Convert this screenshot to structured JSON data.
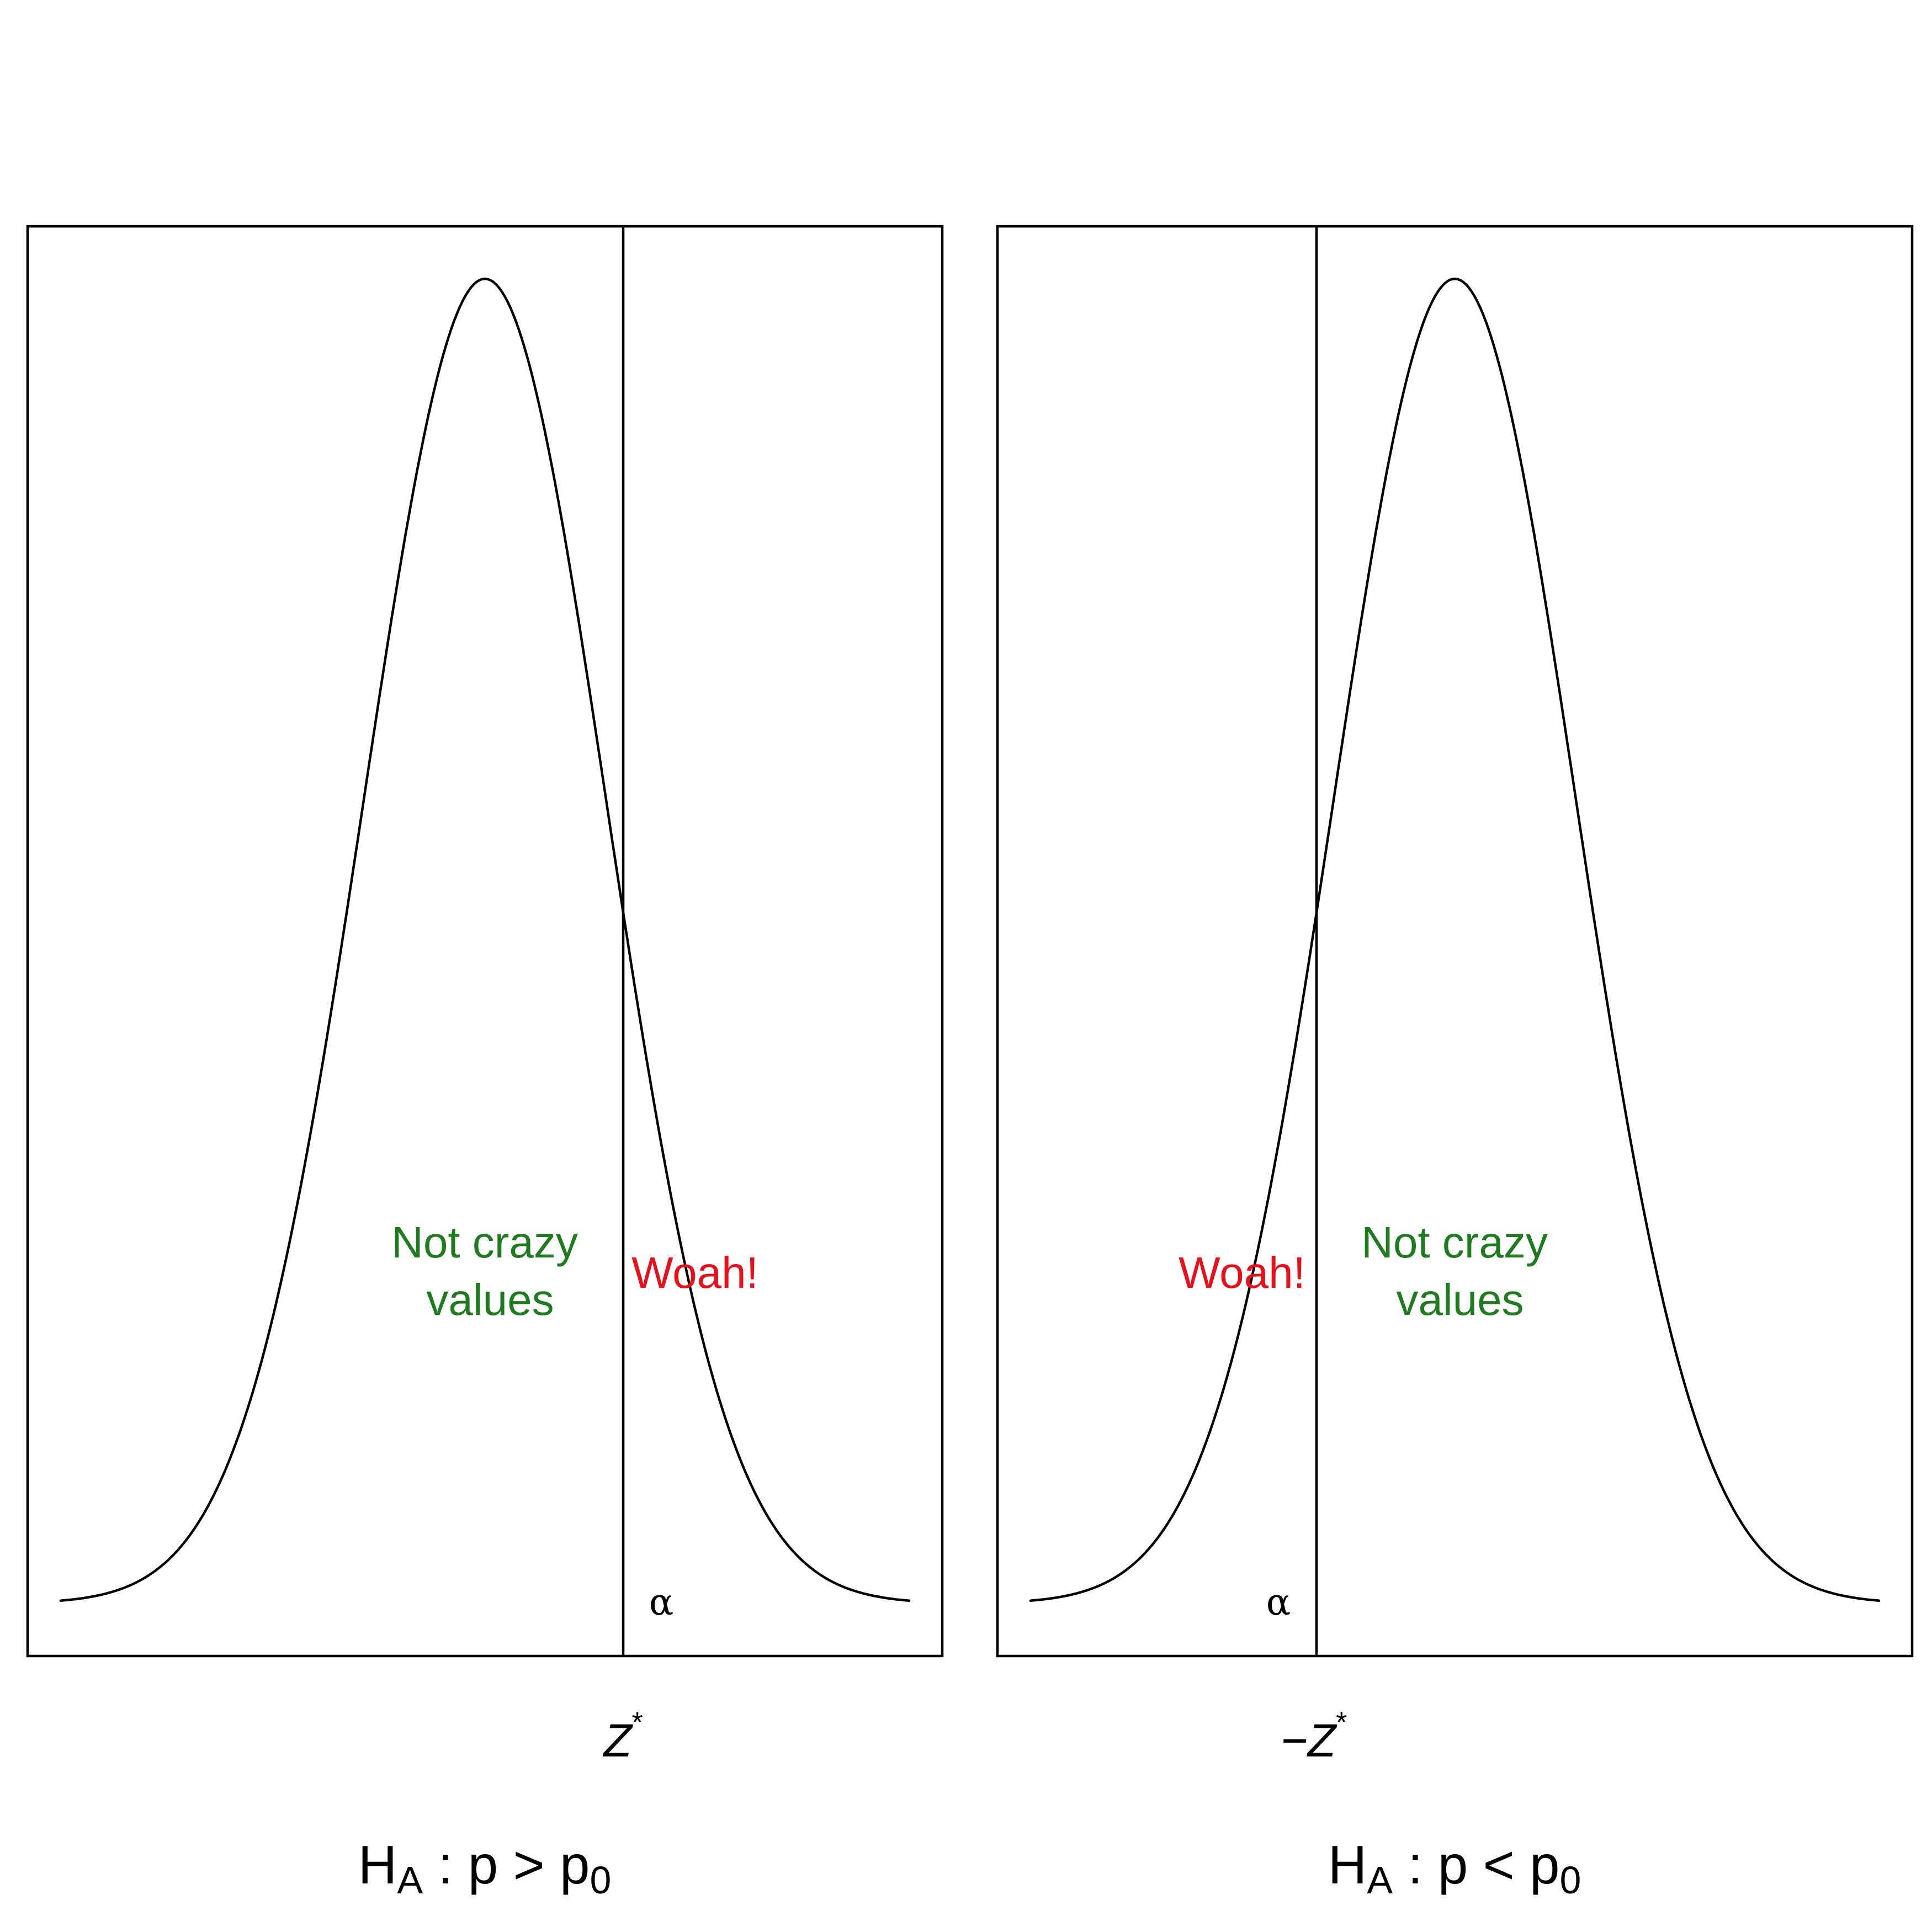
{
  "colors": {
    "not_crazy": "#1e7b1e",
    "woah": "#e8101a",
    "ink": "#000000",
    "background": "#ffffff"
  },
  "chart_data": [
    {
      "type": "diagram",
      "panel": "right-tailed",
      "distribution": "standard normal density",
      "x_range": [
        -3.5,
        3.5
      ],
      "critical_value": 1.645,
      "curve_label": [
        "Not crazy",
        "values"
      ],
      "tail_label": "Woah!",
      "tail_area_label": "α",
      "critical_label": {
        "main": "Z",
        "sup": "*"
      },
      "hypothesis": {
        "H": "H",
        "sub_A": "A",
        "relation": " : p > p",
        "sub_0": "0"
      }
    },
    {
      "type": "diagram",
      "panel": "left-tailed",
      "distribution": "standard normal density",
      "x_range": [
        -3.5,
        3.5
      ],
      "critical_value": -1.645,
      "curve_label": [
        "Not crazy",
        "values"
      ],
      "tail_label": "Woah!",
      "tail_area_label": "α",
      "critical_label": {
        "main": "−Z",
        "sup": "*"
      },
      "hypothesis": {
        "H": "H",
        "sub_A": "A",
        "relation": " : p < p",
        "sub_0": "0"
      }
    }
  ]
}
